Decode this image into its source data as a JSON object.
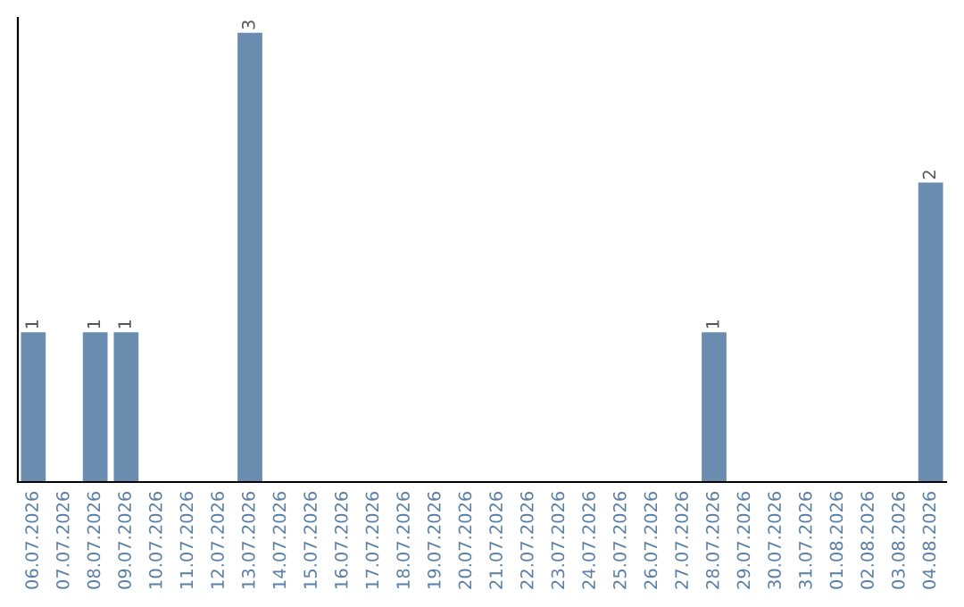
{
  "chart_data": {
    "type": "bar",
    "categories": [
      "06.07.2026",
      "07.07.2026",
      "08.07.2026",
      "09.07.2026",
      "10.07.2026",
      "11.07.2026",
      "12.07.2026",
      "13.07.2026",
      "14.07.2026",
      "15.07.2026",
      "16.07.2026",
      "17.07.2026",
      "18.07.2026",
      "19.07.2026",
      "20.07.2026",
      "21.07.2026",
      "22.07.2026",
      "23.07.2026",
      "24.07.2026",
      "25.07.2026",
      "26.07.2026",
      "27.07.2026",
      "28.07.2026",
      "29.07.2026",
      "30.07.2026",
      "31.07.2026",
      "01.08.2026",
      "02.08.2026",
      "03.08.2026",
      "04.08.2026"
    ],
    "values": [
      1,
      0,
      1,
      1,
      0,
      0,
      0,
      3,
      0,
      0,
      0,
      0,
      0,
      0,
      0,
      0,
      0,
      0,
      0,
      0,
      0,
      0,
      1,
      0,
      0,
      0,
      0,
      0,
      0,
      2
    ],
    "value_labels": [
      "1",
      null,
      "1",
      "1",
      null,
      null,
      null,
      "3",
      null,
      null,
      null,
      null,
      null,
      null,
      null,
      null,
      null,
      null,
      null,
      null,
      null,
      null,
      "1",
      null,
      null,
      null,
      null,
      null,
      null,
      "2"
    ],
    "color": "#6a8caf",
    "ylim": [
      0,
      3.1
    ],
    "tick_labels": "x",
    "grid": false,
    "legend": false
  }
}
